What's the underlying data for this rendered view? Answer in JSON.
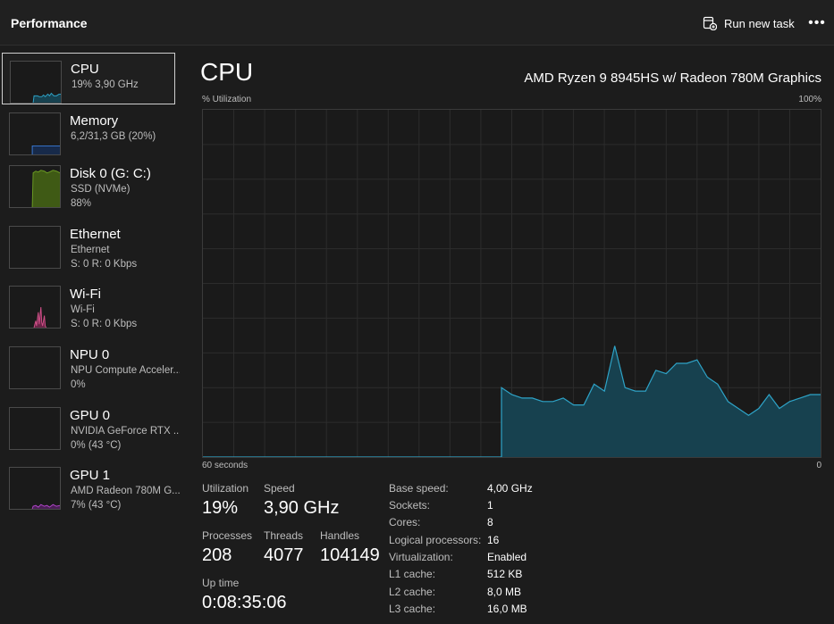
{
  "header": {
    "title": "Performance",
    "run_new_task": "Run new task",
    "more_menu": "•••"
  },
  "sidebar": {
    "items": [
      {
        "name": "CPU",
        "line1": "19%  3,90 GHz",
        "line2": "",
        "accent": "#2ea3c7"
      },
      {
        "name": "Memory",
        "line1": "6,2/31,3 GB (20%)",
        "line2": "",
        "accent": "#3a7bd5"
      },
      {
        "name": "Disk 0 (G: C:)",
        "line1": "SSD (NVMe)",
        "line2": "88%",
        "accent": "#6a9a23"
      },
      {
        "name": "Ethernet",
        "line1": "Ethernet",
        "line2": "S: 0  R: 0 Kbps",
        "accent": "#c44a8a"
      },
      {
        "name": "Wi-Fi",
        "line1": "Wi-Fi",
        "line2": "S: 0  R: 0 Kbps",
        "accent": "#d04f88"
      },
      {
        "name": "NPU 0",
        "line1": "NPU Compute Acceler...",
        "line2": "0%",
        "accent": "#2ea3c7"
      },
      {
        "name": "GPU 0",
        "line1": "NVIDIA GeForce RTX ...",
        "line2": "0% (43 °C)",
        "accent": "#b145c9"
      },
      {
        "name": "GPU 1",
        "line1": "AMD Radeon 780M G...",
        "line2": "7% (43 °C)",
        "accent": "#b145c9"
      }
    ]
  },
  "main": {
    "title": "CPU",
    "model": "AMD Ryzen 9 8945HS w/ Radeon 780M Graphics",
    "y_label": "% Utilization",
    "y_max_label": "100%",
    "x_left_label": "60 seconds",
    "x_right_label": "0",
    "stats": {
      "utilization_label": "Utilization",
      "utilization": "19%",
      "speed_label": "Speed",
      "speed": "3,90 GHz",
      "processes_label": "Processes",
      "processes": "208",
      "threads_label": "Threads",
      "threads": "4077",
      "handles_label": "Handles",
      "handles": "104149",
      "uptime_label": "Up time",
      "uptime": "0:08:35:06"
    },
    "info": [
      {
        "label": "Base speed:",
        "value": "4,00 GHz"
      },
      {
        "label": "Sockets:",
        "value": "1"
      },
      {
        "label": "Cores:",
        "value": "8"
      },
      {
        "label": "Logical processors:",
        "value": "16"
      },
      {
        "label": "Virtualization:",
        "value": "Enabled"
      },
      {
        "label": "L1 cache:",
        "value": "512 KB"
      },
      {
        "label": "L2 cache:",
        "value": "8,0 MB"
      },
      {
        "label": "L3 cache:",
        "value": "16,0 MB"
      }
    ]
  },
  "colors": {
    "cpu_line": "#2ea3c7",
    "cpu_fill": "#17414f",
    "grid": "#2c2c2c"
  },
  "chart_data": {
    "type": "area",
    "title": "",
    "xlabel": "60 seconds",
    "ylabel": "% Utilization",
    "xlim": [
      60,
      0
    ],
    "ylim": [
      0,
      100
    ],
    "grid": true,
    "x": [
      60,
      59,
      58,
      57,
      56,
      55,
      54,
      53,
      52,
      51,
      50,
      49,
      48,
      47,
      46,
      45,
      44,
      43,
      42,
      41,
      40,
      39,
      38,
      37,
      36,
      35,
      34,
      33,
      32,
      31,
      31,
      30,
      29,
      28,
      27,
      26,
      25,
      24,
      23,
      22,
      21,
      20,
      19,
      18,
      17,
      16,
      15,
      14,
      13,
      12,
      11,
      10,
      9,
      8,
      7,
      6,
      5,
      4,
      3,
      2,
      1,
      0
    ],
    "series": [
      {
        "values": [
          0,
          0,
          0,
          0,
          0,
          0,
          0,
          0,
          0,
          0,
          0,
          0,
          0,
          0,
          0,
          0,
          0,
          0,
          0,
          0,
          0,
          0,
          0,
          0,
          0,
          0,
          0,
          0,
          0,
          0,
          20,
          18,
          17,
          17,
          16,
          16,
          17,
          15,
          15,
          21,
          19,
          32,
          20,
          19,
          19,
          25,
          24,
          27,
          27,
          28,
          23,
          21,
          16,
          14,
          12,
          14,
          18,
          14,
          16,
          17,
          18,
          18
        ]
      }
    ]
  }
}
